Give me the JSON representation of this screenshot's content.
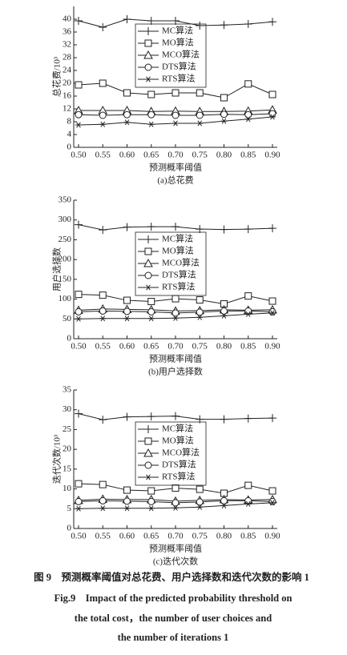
{
  "chart_data": [
    {
      "type": "line",
      "title": "(a)总花费",
      "xlabel": "预测概率阈值",
      "ylabel": "总花费/10³",
      "x": [
        0.5,
        0.55,
        0.6,
        0.65,
        0.7,
        0.75,
        0.8,
        0.85,
        0.9
      ],
      "xlim": [
        0.5,
        0.9
      ],
      "xticks": [
        {
          "value": 0.5,
          "label": "0.50"
        },
        {
          "value": 0.55,
          "label": "0.55"
        },
        {
          "value": 0.6,
          "label": "0.60"
        },
        {
          "value": 0.65,
          "label": "0.65"
        },
        {
          "value": 0.7,
          "label": "0.70"
        },
        {
          "value": 0.75,
          "label": "0.75"
        },
        {
          "value": 0.8,
          "label": "0.80"
        },
        {
          "value": 0.85,
          "label": "0.85"
        },
        {
          "value": 0.9,
          "label": "0.90"
        }
      ],
      "ylim": [
        0,
        44
      ],
      "yticks": [
        0,
        4,
        8,
        12,
        16,
        20,
        24,
        28,
        32,
        36,
        40
      ],
      "legend": "upper center",
      "series": [
        {
          "name": "MC算法",
          "color": "#222222",
          "marker": "plus",
          "values": [
            39.5,
            37.5,
            40,
            39.5,
            39.5,
            38,
            38.2,
            38.5,
            39.2
          ]
        },
        {
          "name": "MO算法",
          "color": "#222222",
          "marker": "square",
          "values": [
            19.5,
            20,
            17,
            16.5,
            17,
            17,
            15.5,
            19.8,
            16.5
          ]
        },
        {
          "name": "MCO算法",
          "color": "#222222",
          "marker": "triangle",
          "values": [
            11.5,
            11.5,
            11.5,
            11.2,
            11.3,
            11.2,
            11.2,
            11.3,
            11.7
          ]
        },
        {
          "name": "DTS算法",
          "color": "#222222",
          "marker": "circle",
          "values": [
            10.2,
            10,
            10.2,
            10.2,
            10,
            10,
            10.3,
            10.2,
            10.5
          ]
        },
        {
          "name": "RTS算法",
          "color": "#222222",
          "marker": "asterisk",
          "values": [
            7,
            7.2,
            7.8,
            7.2,
            7.5,
            7.5,
            8.2,
            8.8,
            9.5
          ]
        }
      ]
    },
    {
      "type": "line",
      "title": "(b)用户选择数",
      "xlabel": "预测概率阈值",
      "ylabel": "用户选择数",
      "x": [
        0.5,
        0.55,
        0.6,
        0.65,
        0.7,
        0.75,
        0.8,
        0.85,
        0.9
      ],
      "xlim": [
        0.5,
        0.9
      ],
      "xticks": [
        {
          "value": 0.5,
          "label": "0.50"
        },
        {
          "value": 0.55,
          "label": "0.55"
        },
        {
          "value": 0.6,
          "label": "0.60"
        },
        {
          "value": 0.65,
          "label": "0.65"
        },
        {
          "value": 0.7,
          "label": "0.70"
        },
        {
          "value": 0.75,
          "label": "0.75"
        },
        {
          "value": 0.8,
          "label": "0.80"
        },
        {
          "value": 0.85,
          "label": "0.85"
        },
        {
          "value": 0.9,
          "label": "0.90"
        }
      ],
      "ylim": [
        0,
        350
      ],
      "yticks": [
        0,
        50,
        100,
        150,
        200,
        250,
        300,
        350
      ],
      "legend": "center",
      "series": [
        {
          "name": "MC算法",
          "color": "#222222",
          "marker": "plus",
          "values": [
            288,
            275,
            282,
            283,
            283,
            277,
            276,
            277,
            279
          ]
        },
        {
          "name": "MO算法",
          "color": "#222222",
          "marker": "square",
          "values": [
            112,
            110,
            97,
            94,
            101,
            98,
            88,
            108,
            95
          ]
        },
        {
          "name": "MCO算法",
          "color": "#222222",
          "marker": "triangle",
          "values": [
            72,
            75,
            74,
            73,
            70,
            71,
            73,
            72,
            73
          ]
        },
        {
          "name": "DTS算法",
          "color": "#222222",
          "marker": "circle",
          "values": [
            68,
            70,
            69,
            68,
            65,
            67,
            70,
            70,
            68
          ]
        },
        {
          "name": "RTS算法",
          "color": "#222222",
          "marker": "asterisk",
          "values": [
            50,
            51,
            51,
            51,
            52,
            54,
            58,
            62,
            65
          ]
        }
      ]
    },
    {
      "type": "line",
      "title": "(c)迭代次数",
      "xlabel": "预测概率阈值",
      "ylabel": "迭代次数/10³",
      "x": [
        0.5,
        0.55,
        0.6,
        0.65,
        0.7,
        0.75,
        0.8,
        0.85,
        0.9
      ],
      "xlim": [
        0.5,
        0.9
      ],
      "xticks": [
        {
          "value": 0.5,
          "label": "0.50"
        },
        {
          "value": 0.55,
          "label": "0.55"
        },
        {
          "value": 0.6,
          "label": "0.60"
        },
        {
          "value": 0.65,
          "label": "0.65"
        },
        {
          "value": 0.7,
          "label": "0.70"
        },
        {
          "value": 0.75,
          "label": "0.75"
        },
        {
          "value": 0.8,
          "label": "0.80"
        },
        {
          "value": 0.85,
          "label": "0.85"
        },
        {
          "value": 0.9,
          "label": "0.90"
        }
      ],
      "ylim": [
        0,
        35
      ],
      "yticks": [
        0,
        5,
        10,
        15,
        20,
        25,
        30,
        35
      ],
      "legend": "center",
      "series": [
        {
          "name": "MC算法",
          "color": "#222222",
          "marker": "plus",
          "values": [
            29,
            27.5,
            28.2,
            28.3,
            28.4,
            27.6,
            27.6,
            27.8,
            27.9
          ]
        },
        {
          "name": "MO算法",
          "color": "#222222",
          "marker": "square",
          "values": [
            11.3,
            11.1,
            9.7,
            9.5,
            10.2,
            9.9,
            8.9,
            10.9,
            9.5
          ]
        },
        {
          "name": "MCO算法",
          "color": "#222222",
          "marker": "triangle",
          "values": [
            7.1,
            7.4,
            7.3,
            7.3,
            6.9,
            7.1,
            7.3,
            7.2,
            7.3
          ]
        },
        {
          "name": "DTS算法",
          "color": "#222222",
          "marker": "circle",
          "values": [
            6.8,
            7.0,
            6.9,
            6.8,
            6.5,
            6.7,
            7.0,
            7.0,
            6.8
          ]
        },
        {
          "name": "RTS算法",
          "color": "#222222",
          "marker": "asterisk",
          "values": [
            5.0,
            5.1,
            5.1,
            5.1,
            5.2,
            5.4,
            5.8,
            6.2,
            6.5
          ]
        }
      ]
    }
  ],
  "caption": [
    "图 9　预测概率阈值对总花费、用户选择数和迭代次数的影响 1",
    "Fig.9　Impact of the predicted probability threshold on",
    "the total cost，the number of user choices and",
    "the number of iterations 1"
  ]
}
